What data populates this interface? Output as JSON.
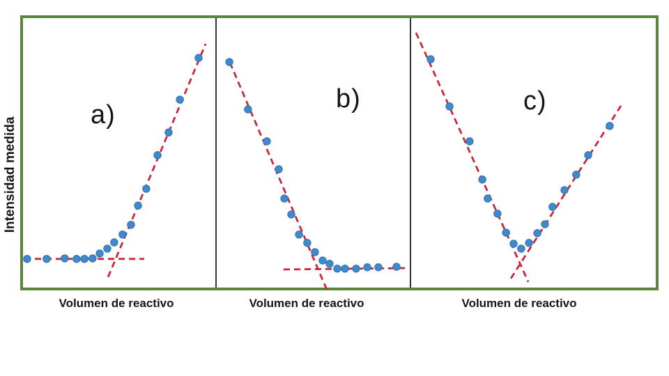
{
  "figure": {
    "y_axis_label": "Intensidad medida",
    "frame_color": "#5a853f",
    "divider_color": "#333333",
    "point_color": "#4189cc",
    "point_edge_color": "#2f6fae",
    "trend_line_color": "#c92639",
    "label_color": "#151515"
  },
  "chart_data": [
    {
      "type": "scatter",
      "panel_label": "a)",
      "xlabel": "Volumen de reactivo",
      "ylabel": "Intensidad medida",
      "axis_ticks": "none",
      "legend": "none",
      "coord_system": "fraction of panel area, origin bottom-left, x 0-1, y 0-1",
      "points": [
        [
          0.018,
          0.111
        ],
        [
          0.12,
          0.111
        ],
        [
          0.215,
          0.113
        ],
        [
          0.277,
          0.111
        ],
        [
          0.318,
          0.111
        ],
        [
          0.361,
          0.113
        ],
        [
          0.398,
          0.131
        ],
        [
          0.438,
          0.149
        ],
        [
          0.474,
          0.172
        ],
        [
          0.518,
          0.201
        ],
        [
          0.562,
          0.237
        ],
        [
          0.599,
          0.308
        ],
        [
          0.642,
          0.37
        ],
        [
          0.701,
          0.494
        ],
        [
          0.759,
          0.578
        ],
        [
          0.818,
          0.699
        ],
        [
          0.916,
          0.853
        ]
      ],
      "trend_lines": [
        {
          "name": "baseline",
          "style": "dashed",
          "x1": 0.004,
          "y1": 0.111,
          "x2": 0.631,
          "y2": 0.111
        },
        {
          "name": "rising-fit",
          "style": "dashed",
          "x1": 0.442,
          "y1": 0.044,
          "x2": 0.953,
          "y2": 0.905
        }
      ]
    },
    {
      "type": "scatter",
      "panel_label": "b)",
      "xlabel": "Volumen de reactivo",
      "ylabel": "Intensidad medida",
      "axis_ticks": "none",
      "legend": "none",
      "coord_system": "fraction of panel area, origin bottom-left, x 0-1, y 0-1",
      "points": [
        [
          0.062,
          0.838
        ],
        [
          0.159,
          0.663
        ],
        [
          0.257,
          0.545
        ],
        [
          0.319,
          0.442
        ],
        [
          0.348,
          0.334
        ],
        [
          0.384,
          0.275
        ],
        [
          0.424,
          0.201
        ],
        [
          0.467,
          0.17
        ],
        [
          0.507,
          0.136
        ],
        [
          0.547,
          0.105
        ],
        [
          0.583,
          0.093
        ],
        [
          0.623,
          0.075
        ],
        [
          0.663,
          0.075
        ],
        [
          0.721,
          0.075
        ],
        [
          0.779,
          0.08
        ],
        [
          0.837,
          0.08
        ],
        [
          0.931,
          0.082
        ]
      ],
      "trend_lines": [
        {
          "name": "falling-fit",
          "style": "dashed",
          "x1": 0.065,
          "y1": 0.836,
          "x2": 0.572,
          "y2": -0.008
        },
        {
          "name": "baseline",
          "style": "dashed",
          "x1": 0.344,
          "y1": 0.072,
          "x2": 0.978,
          "y2": 0.077
        }
      ]
    },
    {
      "type": "scatter",
      "panel_label": "c)",
      "xlabel": "Volumen de reactivo",
      "ylabel": "Intensidad medida",
      "axis_ticks": "none",
      "legend": "none",
      "coord_system": "fraction of panel area, origin bottom-left, x 0-1, y 0-1",
      "points": [
        [
          0.077,
          0.848
        ],
        [
          0.154,
          0.674
        ],
        [
          0.236,
          0.545
        ],
        [
          0.288,
          0.404
        ],
        [
          0.31,
          0.334
        ],
        [
          0.35,
          0.278
        ],
        [
          0.385,
          0.208
        ],
        [
          0.416,
          0.167
        ],
        [
          0.447,
          0.149
        ],
        [
          0.479,
          0.17
        ],
        [
          0.513,
          0.206
        ],
        [
          0.544,
          0.239
        ],
        [
          0.575,
          0.303
        ],
        [
          0.624,
          0.365
        ],
        [
          0.672,
          0.422
        ],
        [
          0.721,
          0.494
        ],
        [
          0.809,
          0.602
        ]
      ],
      "trend_lines": [
        {
          "name": "falling-fit",
          "style": "dashed",
          "x1": 0.017,
          "y1": 0.946,
          "x2": 0.476,
          "y2": 0.026
        },
        {
          "name": "rising-fit",
          "style": "dashed",
          "x1": 0.405,
          "y1": 0.039,
          "x2": 0.858,
          "y2": 0.681
        }
      ]
    }
  ]
}
